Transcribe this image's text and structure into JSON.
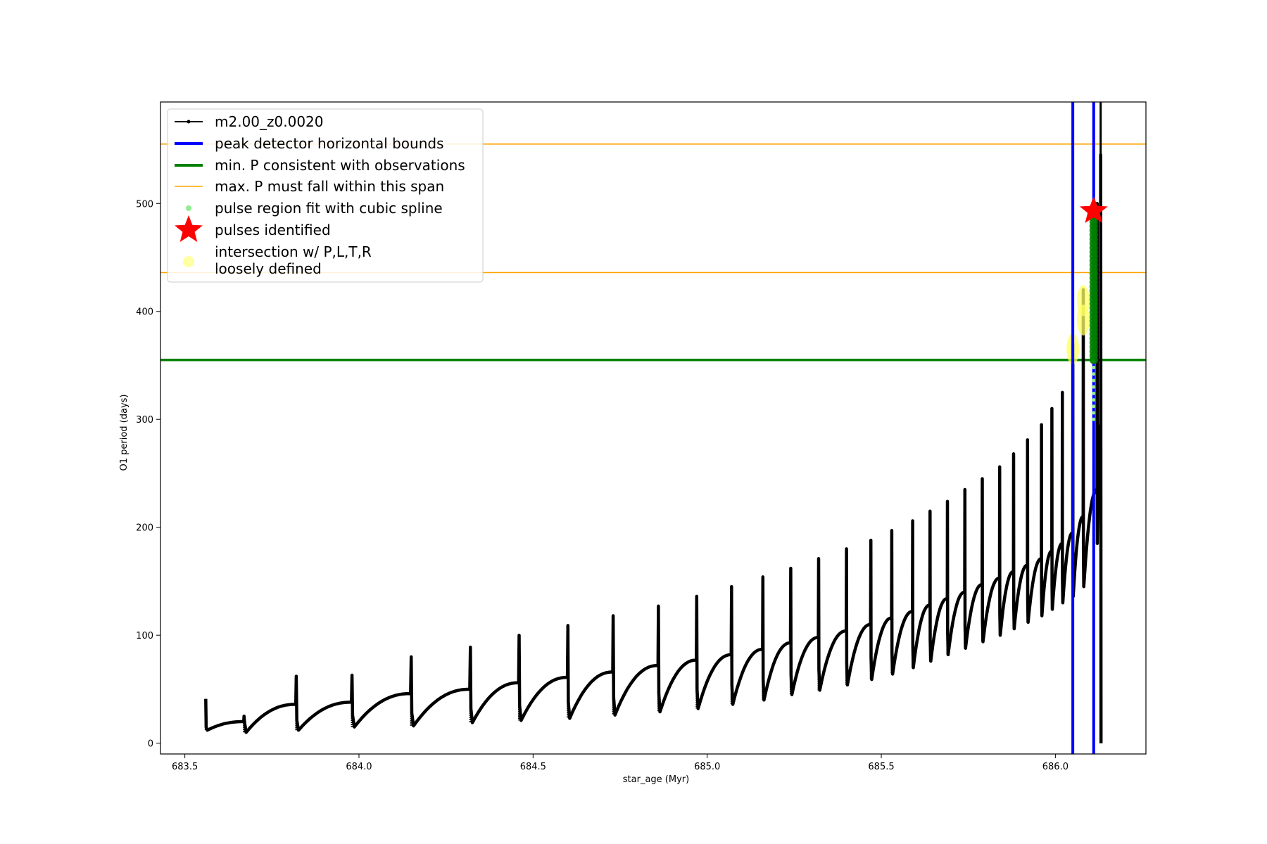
{
  "chart_data": {
    "type": "line",
    "title": "",
    "xlabel": "star_age (Myr)",
    "ylabel": "O1 period (days)",
    "xlim": [
      683.43,
      686.26
    ],
    "ylim": [
      -10,
      594
    ],
    "x_ticks": [
      683.5,
      684.0,
      684.5,
      685.0,
      685.5,
      686.0
    ],
    "x_tick_labels": [
      "683.5",
      "684.0",
      "684.5",
      "685.0",
      "685.5",
      "686.0"
    ],
    "y_ticks": [
      0,
      100,
      200,
      300,
      400,
      500
    ],
    "y_tick_labels": [
      "0",
      "100",
      "200",
      "300",
      "400",
      "500"
    ],
    "grid": false,
    "legend_position": "upper-left",
    "colors": {
      "series": "#000000",
      "bounds": "#0000ff",
      "min_period": "#008000",
      "max_period": "#ffa500",
      "spline": "#90ee90",
      "pulse": "#ff0000",
      "intersection": "#ffff66"
    },
    "series": [
      {
        "name": "m2.00_z0.0020",
        "style": "black line with small dot markers",
        "pulses": [
          {
            "x": 683.56,
            "peak": 41,
            "min": 12,
            "end": 20
          },
          {
            "x": 683.67,
            "peak": 25,
            "min": 10,
            "end": 36
          },
          {
            "x": 683.82,
            "peak": 62,
            "min": 12,
            "end": 38
          },
          {
            "x": 683.98,
            "peak": 63,
            "min": 15,
            "end": 46
          },
          {
            "x": 684.15,
            "peak": 80,
            "min": 16,
            "end": 50
          },
          {
            "x": 684.32,
            "peak": 89,
            "min": 19,
            "end": 56
          },
          {
            "x": 684.46,
            "peak": 100,
            "min": 21,
            "end": 61
          },
          {
            "x": 684.6,
            "peak": 109,
            "min": 23,
            "end": 66
          },
          {
            "x": 684.73,
            "peak": 118,
            "min": 26,
            "end": 72
          },
          {
            "x": 684.86,
            "peak": 127,
            "min": 29,
            "end": 77
          },
          {
            "x": 684.97,
            "peak": 136,
            "min": 32,
            "end": 82
          },
          {
            "x": 685.07,
            "peak": 145,
            "min": 36,
            "end": 87
          },
          {
            "x": 685.16,
            "peak": 154,
            "min": 40,
            "end": 93
          },
          {
            "x": 685.24,
            "peak": 162,
            "min": 45,
            "end": 98
          },
          {
            "x": 685.32,
            "peak": 171,
            "min": 49,
            "end": 104
          },
          {
            "x": 685.4,
            "peak": 180,
            "min": 54,
            "end": 110
          },
          {
            "x": 685.47,
            "peak": 188,
            "min": 59,
            "end": 116
          },
          {
            "x": 685.53,
            "peak": 197,
            "min": 64,
            "end": 122
          },
          {
            "x": 685.59,
            "peak": 206,
            "min": 70,
            "end": 128
          },
          {
            "x": 685.64,
            "peak": 215,
            "min": 76,
            "end": 134
          },
          {
            "x": 685.69,
            "peak": 224,
            "min": 82,
            "end": 140
          },
          {
            "x": 685.74,
            "peak": 235,
            "min": 88,
            "end": 147
          },
          {
            "x": 685.79,
            "peak": 245,
            "min": 94,
            "end": 153
          },
          {
            "x": 685.84,
            "peak": 256,
            "min": 100,
            "end": 159
          },
          {
            "x": 685.88,
            "peak": 268,
            "min": 106,
            "end": 165
          },
          {
            "x": 685.92,
            "peak": 281,
            "min": 112,
            "end": 171
          },
          {
            "x": 685.96,
            "peak": 295,
            "min": 118,
            "end": 178
          },
          {
            "x": 685.99,
            "peak": 310,
            "min": 124,
            "end": 185
          },
          {
            "x": 686.02,
            "peak": 325,
            "min": 130,
            "end": 195
          },
          {
            "x": 686.05,
            "peak": 370,
            "min": 136,
            "end": 210
          },
          {
            "x": 686.08,
            "peak": 420,
            "min": 145,
            "end": 235
          },
          {
            "x": 686.12,
            "peak": 500,
            "min": 185,
            "end": 295
          }
        ],
        "final": {
          "x": 686.13,
          "peak": 545,
          "min": 0
        }
      }
    ],
    "vertical_bounds": {
      "name": "peak detector horizontal bounds",
      "x": [
        686.05,
        686.11
      ]
    },
    "min_period_line": {
      "name": "min. P consistent with observations",
      "y": 355
    },
    "max_period_span": {
      "name": "max. P must fall within this span",
      "y": [
        436,
        555
      ]
    },
    "spline_fit": {
      "name": "pulse region fit with cubic spline",
      "x": 686.11,
      "y": [
        300,
        360
      ]
    },
    "pulses_identified": {
      "name": "pulses identified",
      "x": 686.11,
      "y": 493
    },
    "intersection": {
      "name": "intersection w/ P,L,T,R\nloosely defined",
      "points": [
        {
          "x": 686.05,
          "y": 365
        },
        {
          "x": 686.08,
          "y": 392
        },
        {
          "x": 686.08,
          "y": 410
        }
      ]
    },
    "green_cluster": {
      "x": 686.11,
      "y": [
        355,
        495
      ]
    },
    "legend": [
      "m2.00_z0.0020",
      "peak detector horizontal bounds",
      "min. P consistent with observations",
      "max. P must fall within this span",
      "pulse region fit with cubic spline",
      "pulses identified",
      "intersection w/ P,L,T,R",
      "loosely defined"
    ]
  }
}
